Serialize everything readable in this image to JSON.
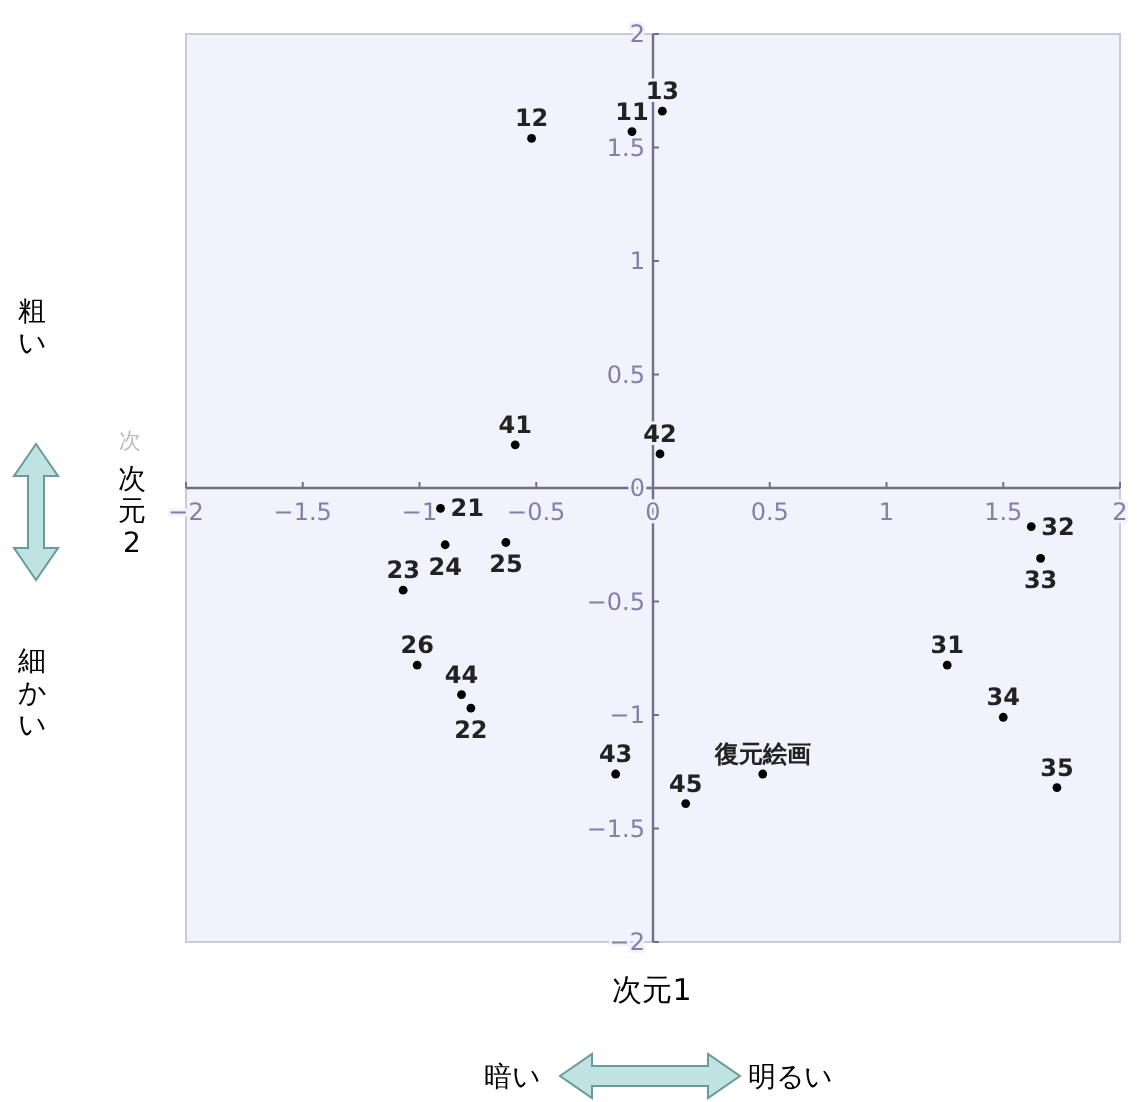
{
  "chart_data": {
    "type": "scatter",
    "xlabel": "次元1",
    "ylabel": "次元2",
    "xlim": [
      -2,
      2
    ],
    "ylim": [
      -2,
      2
    ],
    "xticks": [
      -2,
      -1.5,
      -1,
      -0.5,
      0,
      0.5,
      1,
      1.5,
      2
    ],
    "yticks": [
      -2,
      -1.5,
      -1,
      -0.5,
      0,
      0.5,
      1,
      1.5,
      2
    ],
    "grid": false,
    "marker": "circle",
    "series": [
      {
        "color": "#000000",
        "x": [
          -0.09,
          -0.52,
          0.04,
          -0.91,
          -0.78,
          -1.07,
          -0.89,
          -0.63,
          -1.01,
          1.26,
          1.62,
          1.66,
          1.5,
          1.73,
          -0.59,
          0.03,
          -0.16,
          -0.82,
          0.14,
          0.47
        ],
        "values": [
          1.57,
          1.54,
          1.66,
          -0.09,
          -0.97,
          -0.45,
          -0.25,
          -0.24,
          -0.78,
          -0.78,
          -0.17,
          -0.31,
          -1.01,
          -1.32,
          0.19,
          0.15,
          -1.26,
          -0.91,
          -1.39,
          -1.26
        ]
      }
    ],
    "annotations": [
      "粗い",
      "細かい",
      "暗い",
      "明るい",
      "次",
      {
        "text": "11",
        "x": -0.09,
        "y": 1.57
      },
      {
        "text": "12",
        "x": -0.52,
        "y": 1.54
      },
      {
        "text": "13",
        "x": 0.04,
        "y": 1.66
      },
      {
        "text": "21",
        "x": -0.91,
        "y": -0.09
      },
      {
        "text": "22",
        "x": -0.78,
        "y": -0.97
      },
      {
        "text": "23",
        "x": -1.07,
        "y": -0.45
      },
      {
        "text": "24",
        "x": -0.89,
        "y": -0.25
      },
      {
        "text": "25",
        "x": -0.63,
        "y": -0.24
      },
      {
        "text": "26",
        "x": -1.01,
        "y": -0.78
      },
      {
        "text": "31",
        "x": 1.26,
        "y": -0.78
      },
      {
        "text": "32",
        "x": 1.62,
        "y": -0.17
      },
      {
        "text": "33",
        "x": 1.66,
        "y": -0.31
      },
      {
        "text": "34",
        "x": 1.5,
        "y": -1.01
      },
      {
        "text": "35",
        "x": 1.73,
        "y": -1.32
      },
      {
        "text": "41",
        "x": -0.59,
        "y": 0.19
      },
      {
        "text": "42",
        "x": 0.03,
        "y": 0.15
      },
      {
        "text": "43",
        "x": -0.16,
        "y": -1.26
      },
      {
        "text": "44",
        "x": -0.82,
        "y": -0.91
      },
      {
        "text": "45",
        "x": 0.14,
        "y": -1.39
      },
      {
        "text": "復元絵画",
        "x": 0.47,
        "y": -1.26
      }
    ]
  }
}
